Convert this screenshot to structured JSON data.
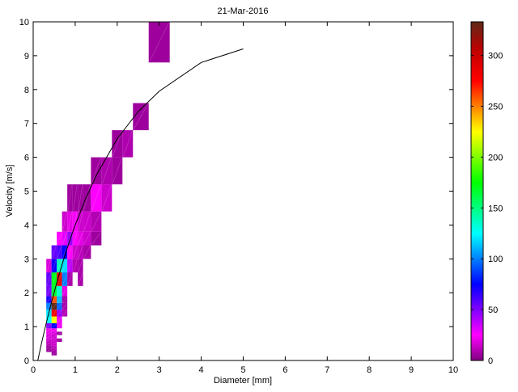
{
  "chart_data": {
    "type": "heatmap",
    "title": "21-Mar-2016",
    "xlabel": "Diameter [mm]",
    "ylabel": "Velocity [m/s]",
    "xlim": [
      0,
      10
    ],
    "ylim": [
      0,
      10
    ],
    "xticks": [
      "0",
      "1",
      "2",
      "3",
      "4",
      "5",
      "6",
      "7",
      "8",
      "9",
      "10"
    ],
    "yticks": [
      "0",
      "1",
      "2",
      "3",
      "4",
      "5",
      "6",
      "7",
      "8",
      "9",
      "10"
    ],
    "grid": false,
    "colorbar": {
      "clim": [
        0,
        333
      ],
      "ticks": [
        "0",
        "50",
        "100",
        "150",
        "200",
        "250",
        "300"
      ],
      "colormap_stops": [
        [
          0,
          "#800080"
        ],
        [
          25,
          "#ff00ff"
        ],
        [
          50,
          "#8000ff"
        ],
        [
          75,
          "#0000ff"
        ],
        [
          100,
          "#0080ff"
        ],
        [
          125,
          "#00ffff"
        ],
        [
          150,
          "#00ff80"
        ],
        [
          175,
          "#00ff00"
        ],
        [
          200,
          "#80ff00"
        ],
        [
          225,
          "#ffff00"
        ],
        [
          250,
          "#ff8000"
        ],
        [
          275,
          "#ff0000"
        ],
        [
          305,
          "#c00000"
        ],
        [
          333,
          "#602818"
        ]
      ]
    },
    "diameter_edges": [
      0.312,
      0.437,
      0.562,
      0.687,
      0.812,
      0.937,
      1.062,
      1.187,
      1.375,
      1.625,
      1.875,
      2.125,
      2.375,
      2.75,
      3.25
    ],
    "velocity_edges": [
      0.15,
      0.25,
      0.35,
      0.45,
      0.55,
      0.65,
      0.75,
      0.85,
      0.95,
      1.1,
      1.3,
      1.5,
      1.7,
      1.9,
      2.2,
      2.6,
      3.0,
      3.4,
      3.8,
      4.4,
      5.2,
      6.0,
      6.8,
      7.6,
      8.8,
      10.4
    ],
    "cells_col_row_count": [
      [
        1,
        0,
        6
      ],
      [
        0,
        1,
        6
      ],
      [
        1,
        1,
        8
      ],
      [
        0,
        2,
        6
      ],
      [
        1,
        2,
        12
      ],
      [
        0,
        3,
        12
      ],
      [
        1,
        3,
        15
      ],
      [
        0,
        4,
        15
      ],
      [
        1,
        4,
        15
      ],
      [
        2,
        4,
        6
      ],
      [
        0,
        5,
        18
      ],
      [
        1,
        5,
        15
      ],
      [
        0,
        6,
        20
      ],
      [
        1,
        6,
        18
      ],
      [
        2,
        6,
        6
      ],
      [
        0,
        7,
        22
      ],
      [
        1,
        7,
        22
      ],
      [
        0,
        8,
        50
      ],
      [
        1,
        8,
        75
      ],
      [
        2,
        8,
        28
      ],
      [
        0,
        9,
        125
      ],
      [
        1,
        9,
        225
      ],
      [
        2,
        9,
        28
      ],
      [
        0,
        10,
        120
      ],
      [
        1,
        10,
        280
      ],
      [
        2,
        10,
        45
      ],
      [
        3,
        10,
        10
      ],
      [
        0,
        11,
        100
      ],
      [
        1,
        11,
        333
      ],
      [
        2,
        11,
        95
      ],
      [
        3,
        11,
        8
      ],
      [
        0,
        12,
        70
      ],
      [
        1,
        12,
        260
      ],
      [
        2,
        12,
        112
      ],
      [
        3,
        12,
        8
      ],
      [
        0,
        13,
        52
      ],
      [
        1,
        13,
        165
      ],
      [
        2,
        13,
        135
      ],
      [
        3,
        13,
        20
      ],
      [
        0,
        14,
        55
      ],
      [
        1,
        14,
        170
      ],
      [
        2,
        14,
        285
      ],
      [
        3,
        14,
        100
      ],
      [
        4,
        14,
        8
      ],
      [
        6,
        14,
        8
      ],
      [
        0,
        15,
        18
      ],
      [
        1,
        15,
        72
      ],
      [
        2,
        15,
        138
      ],
      [
        3,
        15,
        118
      ],
      [
        4,
        15,
        38
      ],
      [
        5,
        15,
        10
      ],
      [
        6,
        15,
        8
      ],
      [
        1,
        16,
        55
      ],
      [
        2,
        16,
        60
      ],
      [
        3,
        16,
        75
      ],
      [
        4,
        16,
        25
      ],
      [
        5,
        16,
        15
      ],
      [
        6,
        16,
        12
      ],
      [
        7,
        16,
        8
      ],
      [
        2,
        17,
        25
      ],
      [
        3,
        17,
        30
      ],
      [
        4,
        17,
        45
      ],
      [
        5,
        17,
        25
      ],
      [
        6,
        17,
        20
      ],
      [
        7,
        17,
        15
      ],
      [
        8,
        17,
        6
      ],
      [
        3,
        18,
        15
      ],
      [
        4,
        18,
        20
      ],
      [
        5,
        18,
        24
      ],
      [
        6,
        18,
        15
      ],
      [
        7,
        18,
        15
      ],
      [
        8,
        18,
        10
      ],
      [
        4,
        19,
        6
      ],
      [
        5,
        19,
        6
      ],
      [
        6,
        19,
        6
      ],
      [
        7,
        19,
        6
      ],
      [
        8,
        19,
        25
      ],
      [
        9,
        19,
        15
      ],
      [
        8,
        20,
        6
      ],
      [
        9,
        20,
        9
      ],
      [
        10,
        20,
        6
      ],
      [
        10,
        21,
        6
      ],
      [
        11,
        21,
        9
      ],
      [
        12,
        22,
        6
      ],
      [
        13,
        24,
        6
      ]
    ],
    "fit_curve": {
      "x": [
        0.109,
        0.2,
        0.3,
        0.4,
        0.5,
        0.6,
        0.7,
        0.8,
        0.9,
        1.0,
        1.25,
        1.5,
        2.0,
        2.5,
        3.0,
        4.0,
        5.0
      ],
      "y": [
        0,
        0.52,
        1.05,
        1.55,
        2.02,
        2.46,
        2.88,
        3.28,
        3.65,
        4.0,
        4.78,
        5.46,
        6.55,
        7.35,
        7.95,
        8.8,
        9.2
      ],
      "color": "#000000"
    }
  }
}
